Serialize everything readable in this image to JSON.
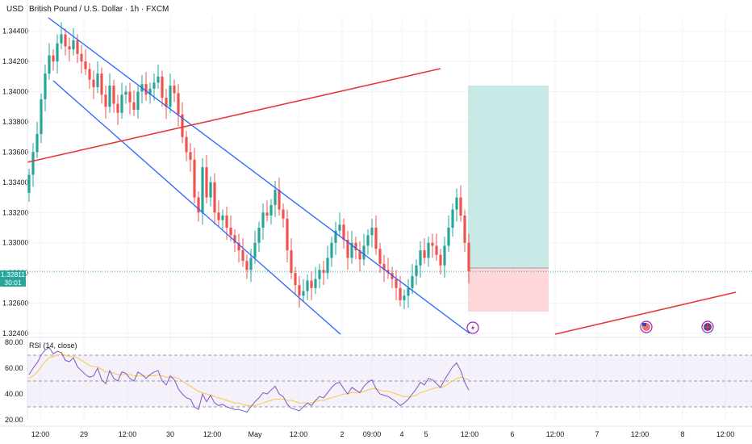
{
  "header": {
    "currency": "USD",
    "title": "British Pound / U.S. Dollar · 1h · FXCM"
  },
  "price_tag": {
    "price": "1.32811",
    "countdown": "30:01"
  },
  "rsi": {
    "label": "RSI (14, close)",
    "levels": [
      70,
      50,
      30
    ]
  },
  "colors": {
    "up": "#26a69a",
    "down": "#ef5350",
    "channel": "#2962ff",
    "trend": "#e53935",
    "rsi_line": "#7e57c2",
    "rsi_ma": "#f9c846",
    "profit_zone": "#b2dfdb",
    "loss_zone": "#ffcdd2"
  },
  "icons": [
    "lightning-event-icon",
    "us-flag-icon",
    "uk-flag-icon"
  ],
  "chart_data": [
    {
      "type": "candlestick",
      "title": "",
      "price_axis_ticks": [
        "1.34400",
        "1.34200",
        "1.34000",
        "1.33800",
        "1.33600",
        "1.33400",
        "1.33200",
        "1.33000",
        "1.32800",
        "1.32600",
        "1.32400"
      ],
      "time_axis_ticks": [
        "12:00",
        "29",
        "12:00",
        "30",
        "12:00",
        "May",
        "12:00",
        "2",
        "09:00",
        "4",
        "5",
        "12:00",
        "6",
        "12:00",
        "7",
        "12:00",
        "8",
        "12:00"
      ],
      "ylim": [
        1.324,
        1.345
      ],
      "closes": [
        1.3345,
        1.336,
        1.3372,
        1.3395,
        1.3412,
        1.3424,
        1.342,
        1.3432,
        1.3438,
        1.343,
        1.3428,
        1.3434,
        1.3425,
        1.342,
        1.3415,
        1.3408,
        1.3403,
        1.3412,
        1.3398,
        1.339,
        1.3404,
        1.3392,
        1.3386,
        1.3398,
        1.34,
        1.3393,
        1.3388,
        1.34,
        1.3405,
        1.3398,
        1.3402,
        1.3406,
        1.341,
        1.3396,
        1.339,
        1.3404,
        1.3399,
        1.3385,
        1.337,
        1.336,
        1.3355,
        1.333,
        1.332,
        1.335,
        1.333,
        1.334,
        1.332,
        1.3315,
        1.3318,
        1.331,
        1.3305,
        1.33,
        1.3295,
        1.3288,
        1.3282,
        1.329,
        1.33,
        1.331,
        1.332,
        1.3318,
        1.3325,
        1.3335,
        1.3322,
        1.3316,
        1.3295,
        1.328,
        1.3272,
        1.3265,
        1.3268,
        1.3275,
        1.327,
        1.3276,
        1.3282,
        1.328,
        1.329,
        1.33,
        1.3308,
        1.3312,
        1.3302,
        1.329,
        1.33,
        1.3295,
        1.3289,
        1.3298,
        1.3305,
        1.331,
        1.3296,
        1.3286,
        1.3282,
        1.328,
        1.3276,
        1.327,
        1.3262,
        1.3265,
        1.327,
        1.3278,
        1.3285,
        1.3295,
        1.329,
        1.33,
        1.3298,
        1.3292,
        1.3285,
        1.3298,
        1.331,
        1.3322,
        1.333,
        1.3318,
        1.33,
        1.3281
      ]
    },
    {
      "type": "line",
      "title": "RSI (14, close)",
      "ylim": [
        20,
        80
      ],
      "y_ticks": [
        80.0,
        60.0,
        40.0,
        20.0
      ],
      "series": [
        {
          "name": "",
          "values": [
            55,
            60,
            64,
            70,
            74,
            76,
            71,
            73,
            72,
            66,
            65,
            68,
            61,
            58,
            55,
            53,
            54,
            60,
            51,
            48,
            58,
            52,
            50,
            57,
            56,
            52,
            50,
            57,
            55,
            52,
            55,
            57,
            58,
            50,
            47,
            54,
            51,
            44,
            40,
            37,
            36,
            30,
            28,
            40,
            34,
            39,
            33,
            31,
            32,
            30,
            29,
            28,
            28,
            27,
            26,
            30,
            34,
            37,
            41,
            40,
            43,
            46,
            40,
            38,
            32,
            29,
            28,
            27,
            30,
            33,
            31,
            35,
            38,
            37,
            41,
            45,
            48,
            49,
            44,
            40,
            45,
            43,
            41,
            46,
            49,
            51,
            44,
            40,
            39,
            38,
            36,
            34,
            31,
            33,
            36,
            40,
            44,
            49,
            47,
            52,
            51,
            48,
            45,
            51,
            56,
            61,
            64,
            58,
            49,
            43
          ]
        },
        {
          "name": "",
          "values": [
            52,
            54,
            57,
            61,
            65,
            68,
            69,
            70,
            71,
            70,
            69,
            69,
            68,
            66,
            64,
            62,
            61,
            61,
            59,
            57,
            57,
            56,
            55,
            55,
            55,
            55,
            54,
            54,
            54,
            54,
            54,
            54,
            55,
            54,
            53,
            53,
            53,
            52,
            50,
            48,
            46,
            44,
            42,
            41,
            40,
            39,
            38,
            37,
            36,
            35,
            34,
            33,
            33,
            32,
            31,
            31,
            31,
            32,
            33,
            34,
            35,
            36,
            36,
            36,
            35,
            35,
            34,
            33,
            33,
            33,
            33,
            34,
            35,
            35,
            36,
            37,
            38,
            39,
            40,
            40,
            41,
            41,
            41,
            42,
            43,
            44,
            44,
            43,
            42,
            42,
            41,
            40,
            39,
            38,
            38,
            38,
            39,
            41,
            42,
            43,
            44,
            45,
            45,
            46,
            48,
            50,
            52,
            53,
            52,
            51
          ]
        }
      ]
    }
  ]
}
